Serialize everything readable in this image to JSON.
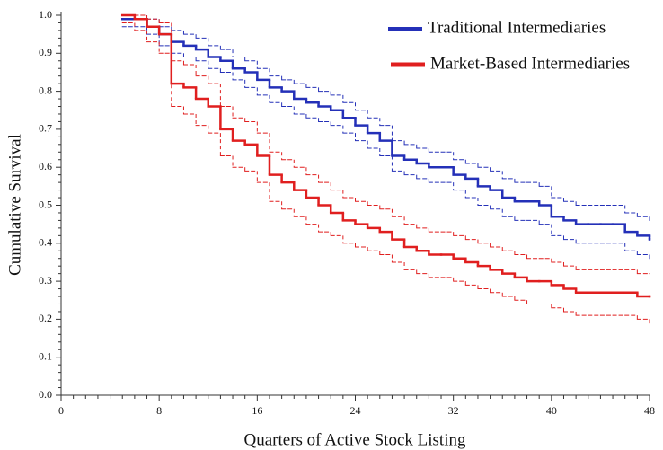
{
  "chart_data": {
    "type": "step",
    "x_label": "Quarters of Active Stock Listing",
    "y_label": "Cumulative Survival",
    "xlim": [
      0,
      48
    ],
    "xticks": [
      0,
      8,
      16,
      24,
      32,
      40,
      48
    ],
    "ylim": [
      0,
      1
    ],
    "yticks": [
      {
        "value": 0,
        "label": "0.0"
      },
      0.1,
      0.2,
      0.3,
      0.4,
      0.5,
      0.6,
      0.7,
      0.8,
      0.9,
      {
        "value": 1,
        "label": "1.0"
      }
    ],
    "legend": "top-right",
    "x": [
      5,
      6,
      7,
      8,
      9,
      10,
      11,
      12,
      13,
      14,
      15,
      16,
      17,
      18,
      19,
      20,
      21,
      22,
      23,
      24,
      25,
      26,
      27,
      28,
      29,
      30,
      31,
      32,
      33,
      34,
      35,
      36,
      37,
      38,
      39,
      40,
      41,
      42,
      43,
      44,
      45,
      46,
      47,
      48
    ],
    "series": [
      {
        "name": "Traditional Intermediaries",
        "color": "#2430b8",
        "values": [
          0.99,
          0.99,
          0.97,
          0.95,
          0.93,
          0.92,
          0.91,
          0.89,
          0.88,
          0.86,
          0.85,
          0.83,
          0.81,
          0.8,
          0.78,
          0.77,
          0.76,
          0.75,
          0.73,
          0.71,
          0.69,
          0.67,
          0.63,
          0.62,
          0.61,
          0.6,
          0.6,
          0.58,
          0.57,
          0.55,
          0.54,
          0.52,
          0.51,
          0.51,
          0.5,
          0.47,
          0.46,
          0.45,
          0.45,
          0.45,
          0.45,
          0.43,
          0.42,
          0.41
        ],
        "ci_upper": [
          1.0,
          1.0,
          0.99,
          0.97,
          0.96,
          0.95,
          0.94,
          0.92,
          0.91,
          0.89,
          0.88,
          0.86,
          0.84,
          0.83,
          0.82,
          0.81,
          0.8,
          0.79,
          0.77,
          0.75,
          0.73,
          0.71,
          0.67,
          0.66,
          0.65,
          0.64,
          0.64,
          0.62,
          0.61,
          0.6,
          0.59,
          0.57,
          0.56,
          0.56,
          0.55,
          0.52,
          0.51,
          0.5,
          0.5,
          0.5,
          0.5,
          0.48,
          0.47,
          0.46
        ],
        "ci_lower": [
          0.97,
          0.97,
          0.95,
          0.92,
          0.9,
          0.89,
          0.88,
          0.86,
          0.85,
          0.83,
          0.81,
          0.79,
          0.77,
          0.76,
          0.74,
          0.73,
          0.72,
          0.71,
          0.69,
          0.67,
          0.65,
          0.63,
          0.59,
          0.58,
          0.57,
          0.56,
          0.56,
          0.54,
          0.52,
          0.5,
          0.49,
          0.47,
          0.46,
          0.46,
          0.45,
          0.42,
          0.41,
          0.4,
          0.4,
          0.4,
          0.4,
          0.38,
          0.37,
          0.36
        ]
      },
      {
        "name": "Market-Based Intermediaries",
        "color": "#e01f1f",
        "values": [
          1.0,
          0.99,
          0.97,
          0.95,
          0.82,
          0.81,
          0.78,
          0.76,
          0.7,
          0.67,
          0.66,
          0.63,
          0.58,
          0.56,
          0.54,
          0.52,
          0.5,
          0.48,
          0.46,
          0.45,
          0.44,
          0.43,
          0.41,
          0.39,
          0.38,
          0.37,
          0.37,
          0.36,
          0.35,
          0.34,
          0.33,
          0.32,
          0.31,
          0.3,
          0.3,
          0.29,
          0.28,
          0.27,
          0.27,
          0.27,
          0.27,
          0.27,
          0.26,
          0.26
        ],
        "ci_upper": [
          1.0,
          1.0,
          0.99,
          0.98,
          0.88,
          0.87,
          0.84,
          0.82,
          0.76,
          0.73,
          0.72,
          0.69,
          0.64,
          0.62,
          0.6,
          0.58,
          0.56,
          0.54,
          0.52,
          0.51,
          0.5,
          0.49,
          0.47,
          0.45,
          0.44,
          0.43,
          0.43,
          0.42,
          0.41,
          0.4,
          0.39,
          0.38,
          0.37,
          0.36,
          0.36,
          0.35,
          0.34,
          0.33,
          0.33,
          0.33,
          0.33,
          0.33,
          0.32,
          0.32
        ],
        "ci_lower": [
          0.98,
          0.96,
          0.93,
          0.9,
          0.76,
          0.74,
          0.71,
          0.69,
          0.63,
          0.6,
          0.59,
          0.56,
          0.51,
          0.49,
          0.47,
          0.45,
          0.43,
          0.42,
          0.4,
          0.39,
          0.38,
          0.37,
          0.35,
          0.33,
          0.32,
          0.31,
          0.31,
          0.3,
          0.29,
          0.28,
          0.27,
          0.26,
          0.25,
          0.24,
          0.24,
          0.23,
          0.22,
          0.21,
          0.21,
          0.21,
          0.21,
          0.21,
          0.2,
          0.19
        ]
      }
    ]
  }
}
